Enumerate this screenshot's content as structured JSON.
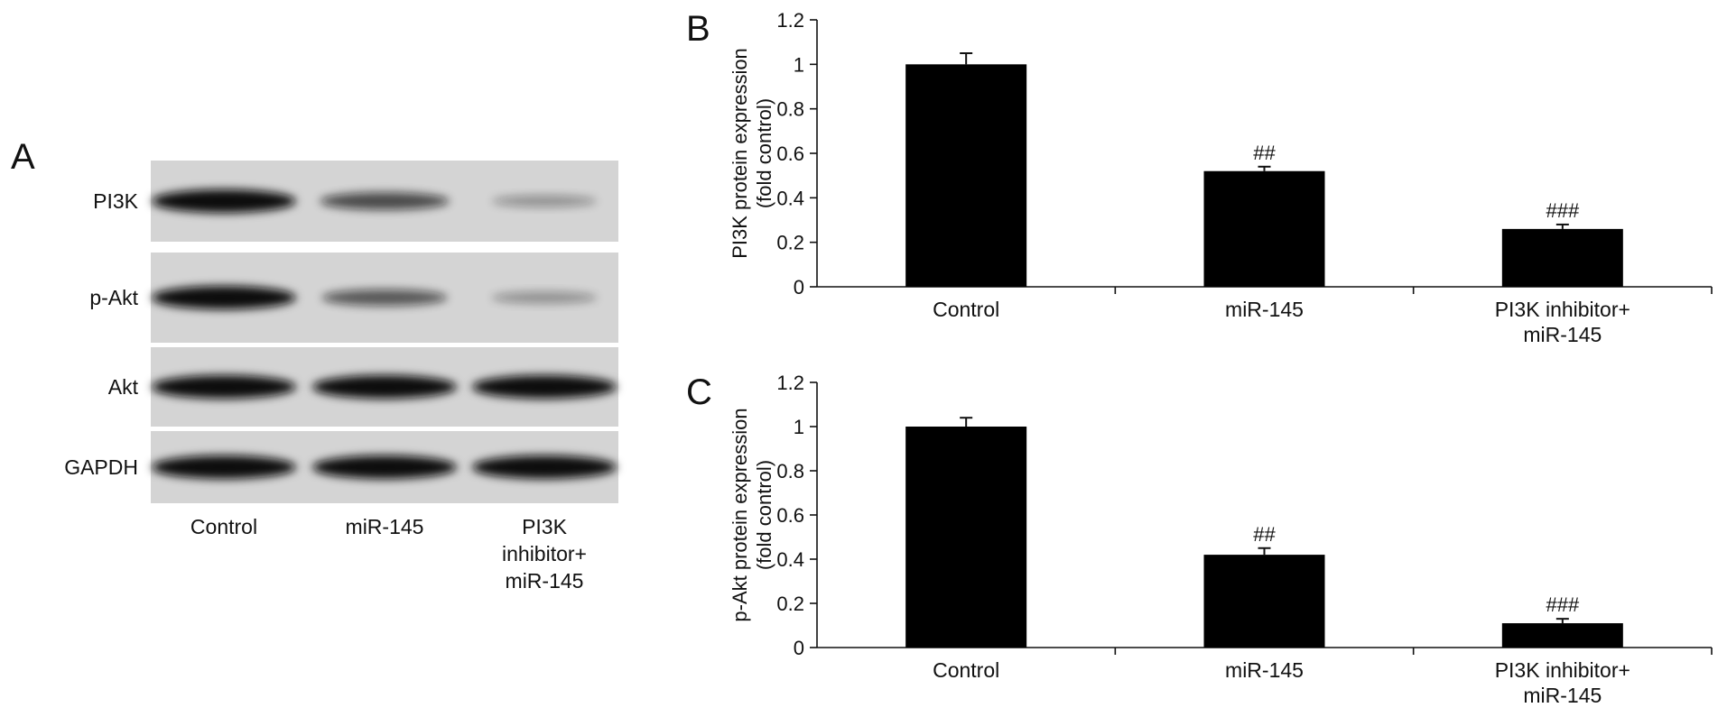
{
  "panels": {
    "a": {
      "letter": "A"
    },
    "b": {
      "letter": "B"
    },
    "c": {
      "letter": "C"
    }
  },
  "blot": {
    "rows": [
      "PI3K",
      "p-Akt",
      "Akt",
      "GAPDH"
    ],
    "lanes": [
      "Control",
      "miR-145",
      "PI3K inhibitor+ miR-145"
    ],
    "lane_label_lines": [
      [
        "Control"
      ],
      [
        "miR-145"
      ],
      [
        "PI3K",
        "inhibitor+",
        "miR-145"
      ]
    ],
    "band_intensity": [
      [
        1.0,
        0.55,
        0.1
      ],
      [
        1.0,
        0.46,
        0.11
      ],
      [
        1.0,
        1.0,
        1.0
      ],
      [
        1.0,
        1.0,
        1.0
      ]
    ]
  },
  "chart_data": [
    {
      "type": "bar",
      "panel": "B",
      "categories": [
        "Control",
        "miR-145",
        "PI3K inhibitor+ miR-145"
      ],
      "category_label_lines": [
        [
          "Control"
        ],
        [
          "miR-145"
        ],
        [
          "PI3K inhibitor+",
          "miR-145"
        ]
      ],
      "values": [
        1.0,
        0.52,
        0.26
      ],
      "errors": [
        0.05,
        0.02,
        0.02
      ],
      "annotations": [
        "",
        "##",
        "###"
      ],
      "ylabel_lines": [
        "PI3K protein expression",
        "(fold control)"
      ],
      "ylim": [
        0,
        1.2
      ],
      "yticks": [
        0,
        0.2,
        0.4,
        0.6,
        0.8,
        1,
        1.2
      ],
      "bar_color": "#000000",
      "grid": false
    },
    {
      "type": "bar",
      "panel": "C",
      "categories": [
        "Control",
        "miR-145",
        "PI3K inhibitor+ miR-145"
      ],
      "category_label_lines": [
        [
          "Control"
        ],
        [
          "miR-145"
        ],
        [
          "PI3K inhibitor+",
          "miR-145"
        ]
      ],
      "values": [
        1.0,
        0.42,
        0.11
      ],
      "errors": [
        0.04,
        0.03,
        0.02
      ],
      "annotations": [
        "",
        "##",
        "###"
      ],
      "ylabel_lines": [
        "p-Akt protein expression",
        "(fold control)"
      ],
      "ylim": [
        0,
        1.2
      ],
      "yticks": [
        0,
        0.2,
        0.4,
        0.6,
        0.8,
        1,
        1.2
      ],
      "bar_color": "#000000",
      "grid": false
    }
  ]
}
